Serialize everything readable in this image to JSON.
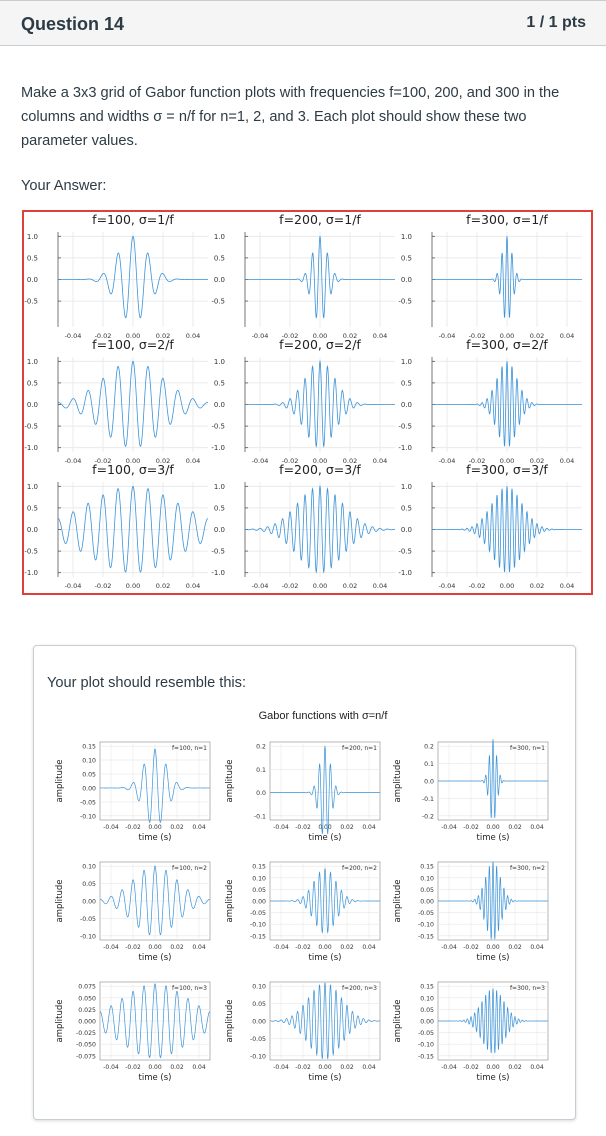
{
  "question": {
    "title": "Question 14",
    "points": "1 / 1 pts"
  },
  "prompt": "Make a 3x3 grid of Gabor function plots with frequencies f=100, 200, and 300 in the columns and widths σ = n/f for n=1, 2, and 3. Each plot should show these two parameter values.",
  "answer_label": "Your Answer:",
  "reference_caption": "Your plot should resemble this:",
  "reference_suptitle": "Gabor functions with σ=n/f",
  "colors": {
    "accent": "#e0403c",
    "line": "#3a93d9",
    "grid": "#e6e6e6"
  },
  "chart_data": [
    {
      "type": "line",
      "name": "answer-grid",
      "function": "cos(2*pi*f*t)*exp(-t^2/(2*sigma^2))",
      "x_range": [
        -0.05,
        0.05
      ],
      "xticks": [
        -0.04,
        -0.02,
        0.0,
        0.02,
        0.04
      ],
      "xtick_labels": [
        "-0.04",
        "-0.02",
        "0.00",
        "0.02",
        "0.04"
      ],
      "ylim": [
        -1.1,
        1.1
      ],
      "yticks_row1": [
        1.0,
        0.5,
        0.0,
        -0.5
      ],
      "yticks_row1_labels": [
        "1.0",
        "0.5",
        "0.0",
        "-0.5"
      ],
      "yticks": [
        1.0,
        0.5,
        0.0,
        -0.5,
        -1.0
      ],
      "ytick_labels": [
        "1.0",
        "0.5",
        "0.0",
        "-0.5",
        "-1.0"
      ],
      "grid": true,
      "panels": [
        {
          "title": "f=100, σ=1/f",
          "f": 100,
          "n": 1
        },
        {
          "title": "f=200, σ=1/f",
          "f": 200,
          "n": 1
        },
        {
          "title": "f=300, σ=1/f",
          "f": 300,
          "n": 1
        },
        {
          "title": "f=100, σ=2/f",
          "f": 100,
          "n": 2
        },
        {
          "title": "f=200, σ=2/f",
          "f": 200,
          "n": 2
        },
        {
          "title": "f=300, σ=2/f",
          "f": 300,
          "n": 2
        },
        {
          "title": "f=100, σ=3/f",
          "f": 100,
          "n": 3
        },
        {
          "title": "f=200, σ=3/f",
          "f": 200,
          "n": 3
        },
        {
          "title": "f=300, σ=3/f",
          "f": 300,
          "n": 3
        }
      ]
    },
    {
      "type": "line",
      "name": "reference-grid",
      "function": "cos(2*pi*f*t)*exp(-t^2/(2*sigma^2)) (normalized)",
      "title": "Gabor functions with σ=n/f",
      "xlabel": "time (s)",
      "ylabel": "amplitude",
      "x_range": [
        -0.05,
        0.05
      ],
      "xticks": [
        -0.04,
        -0.02,
        0.0,
        0.02,
        0.04
      ],
      "xtick_labels": [
        "-0.04",
        "-0.02",
        "0.00",
        "0.02",
        "0.04"
      ],
      "grid": true,
      "panels": [
        {
          "label": "f=100, n=1",
          "f": 100,
          "n": 1,
          "amp": 0.14,
          "yticks": [
            0.15,
            0.1,
            0.05,
            0.0,
            -0.05,
            -0.1
          ],
          "ytick_labels": [
            "0.15",
            "0.10",
            "0.05",
            "0.00",
            "-0.05",
            "-0.10"
          ]
        },
        {
          "label": "f=200, n=1",
          "f": 200,
          "n": 1,
          "amp": 0.2,
          "yticks": [
            0.2,
            0.1,
            0.0,
            -0.1
          ],
          "ytick_labels": [
            "0.2",
            "0.1",
            "0.0",
            "-0.1"
          ]
        },
        {
          "label": "f=300, n=1",
          "f": 300,
          "n": 1,
          "amp": 0.24,
          "yticks": [
            0.2,
            0.1,
            0.0,
            -0.1,
            -0.2
          ],
          "ytick_labels": [
            "0.2",
            "0.1",
            "0.0",
            "-0.1",
            "-0.2"
          ]
        },
        {
          "label": "f=100, n=2",
          "f": 100,
          "n": 2,
          "amp": 0.1,
          "yticks": [
            0.1,
            0.05,
            0.0,
            -0.05,
            -0.1
          ],
          "ytick_labels": [
            "0.10",
            "0.05",
            "0.00",
            "-0.05",
            "-0.10"
          ]
        },
        {
          "label": "f=200, n=2",
          "f": 200,
          "n": 2,
          "amp": 0.14,
          "yticks": [
            0.15,
            0.1,
            0.05,
            0.0,
            -0.05,
            -0.1,
            -0.15
          ],
          "ytick_labels": [
            "0.15",
            "0.10",
            "0.05",
            "0.00",
            "-0.05",
            "-0.10",
            "-0.15"
          ]
        },
        {
          "label": "f=300, n=2",
          "f": 300,
          "n": 2,
          "amp": 0.17,
          "yticks": [
            0.15,
            0.1,
            0.05,
            0.0,
            -0.05,
            -0.1,
            -0.15
          ],
          "ytick_labels": [
            "0.15",
            "0.10",
            "0.05",
            "0.00",
            "-0.05",
            "-0.10",
            "-0.15"
          ]
        },
        {
          "label": "f=100, n=3",
          "f": 100,
          "n": 3,
          "amp": 0.08,
          "yticks": [
            0.075,
            0.05,
            0.025,
            0.0,
            -0.025,
            -0.05,
            -0.075
          ],
          "ytick_labels": [
            "0.075",
            "0.050",
            "0.025",
            "0.000",
            "-0.025",
            "-0.050",
            "-0.075"
          ]
        },
        {
          "label": "f=200, n=3",
          "f": 200,
          "n": 3,
          "amp": 0.11,
          "yticks": [
            0.1,
            0.05,
            0.0,
            -0.05,
            -0.1
          ],
          "ytick_labels": [
            "0.10",
            "0.05",
            "0.00",
            "-0.05",
            "-0.10"
          ]
        },
        {
          "label": "f=300, n=3",
          "f": 300,
          "n": 3,
          "amp": 0.14,
          "yticks": [
            0.15,
            0.1,
            0.05,
            0.0,
            -0.05,
            -0.1,
            -0.15
          ],
          "ytick_labels": [
            "0.15",
            "0.10",
            "0.05",
            "0.00",
            "-0.05",
            "-0.10",
            "-0.15"
          ]
        }
      ]
    }
  ]
}
